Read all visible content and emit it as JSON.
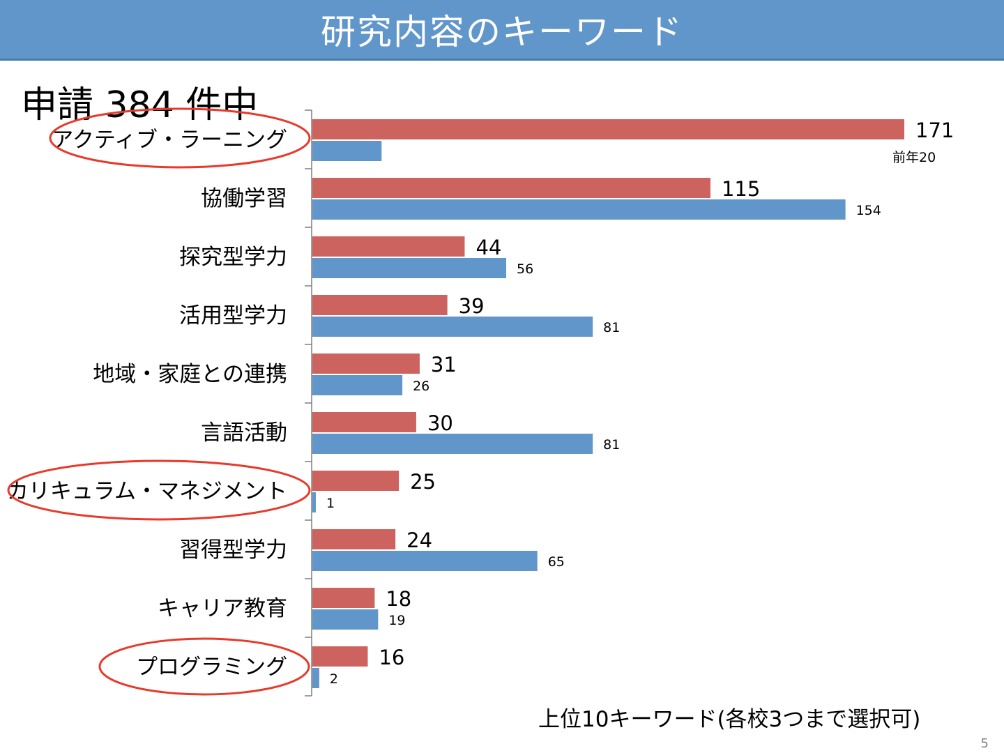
{
  "slide": {
    "title": "研究内容のキーワード",
    "subtitle": "申請 384 件中",
    "footnote": "上位10キーワード(各校3つまで選択可)",
    "page_number": "5",
    "title_bar_color": "#6196cb",
    "highlight_color": "#e8392a"
  },
  "chart_data": {
    "type": "bar",
    "orientation": "horizontal",
    "categories": [
      "アクティブ・ラーニング",
      "協働学習",
      "探究型学力",
      "活用型学力",
      "地域・家庭との連携",
      "言語活動",
      "カリキュラム・マネジメント",
      "習得型学力",
      "キャリア教育",
      "プログラミング"
    ],
    "series": [
      {
        "color": "#cd635f",
        "values": [
          171,
          115,
          44,
          39,
          31,
          30,
          25,
          24,
          18,
          16
        ]
      },
      {
        "color": "#6196cb",
        "values": [
          20,
          154,
          56,
          81,
          26,
          81,
          1,
          65,
          19,
          2
        ]
      }
    ],
    "secondary_labels": [
      "前年20",
      "154",
      "56",
      "81",
      "26",
      "81",
      "1",
      "65",
      "19",
      "2"
    ],
    "highlighted_categories": [
      "アクティブ・ラーニング",
      "カリキュラム・マネジメント",
      "プログラミング"
    ],
    "xlim": [
      0,
      171
    ],
    "grid": false,
    "legend": "none"
  }
}
